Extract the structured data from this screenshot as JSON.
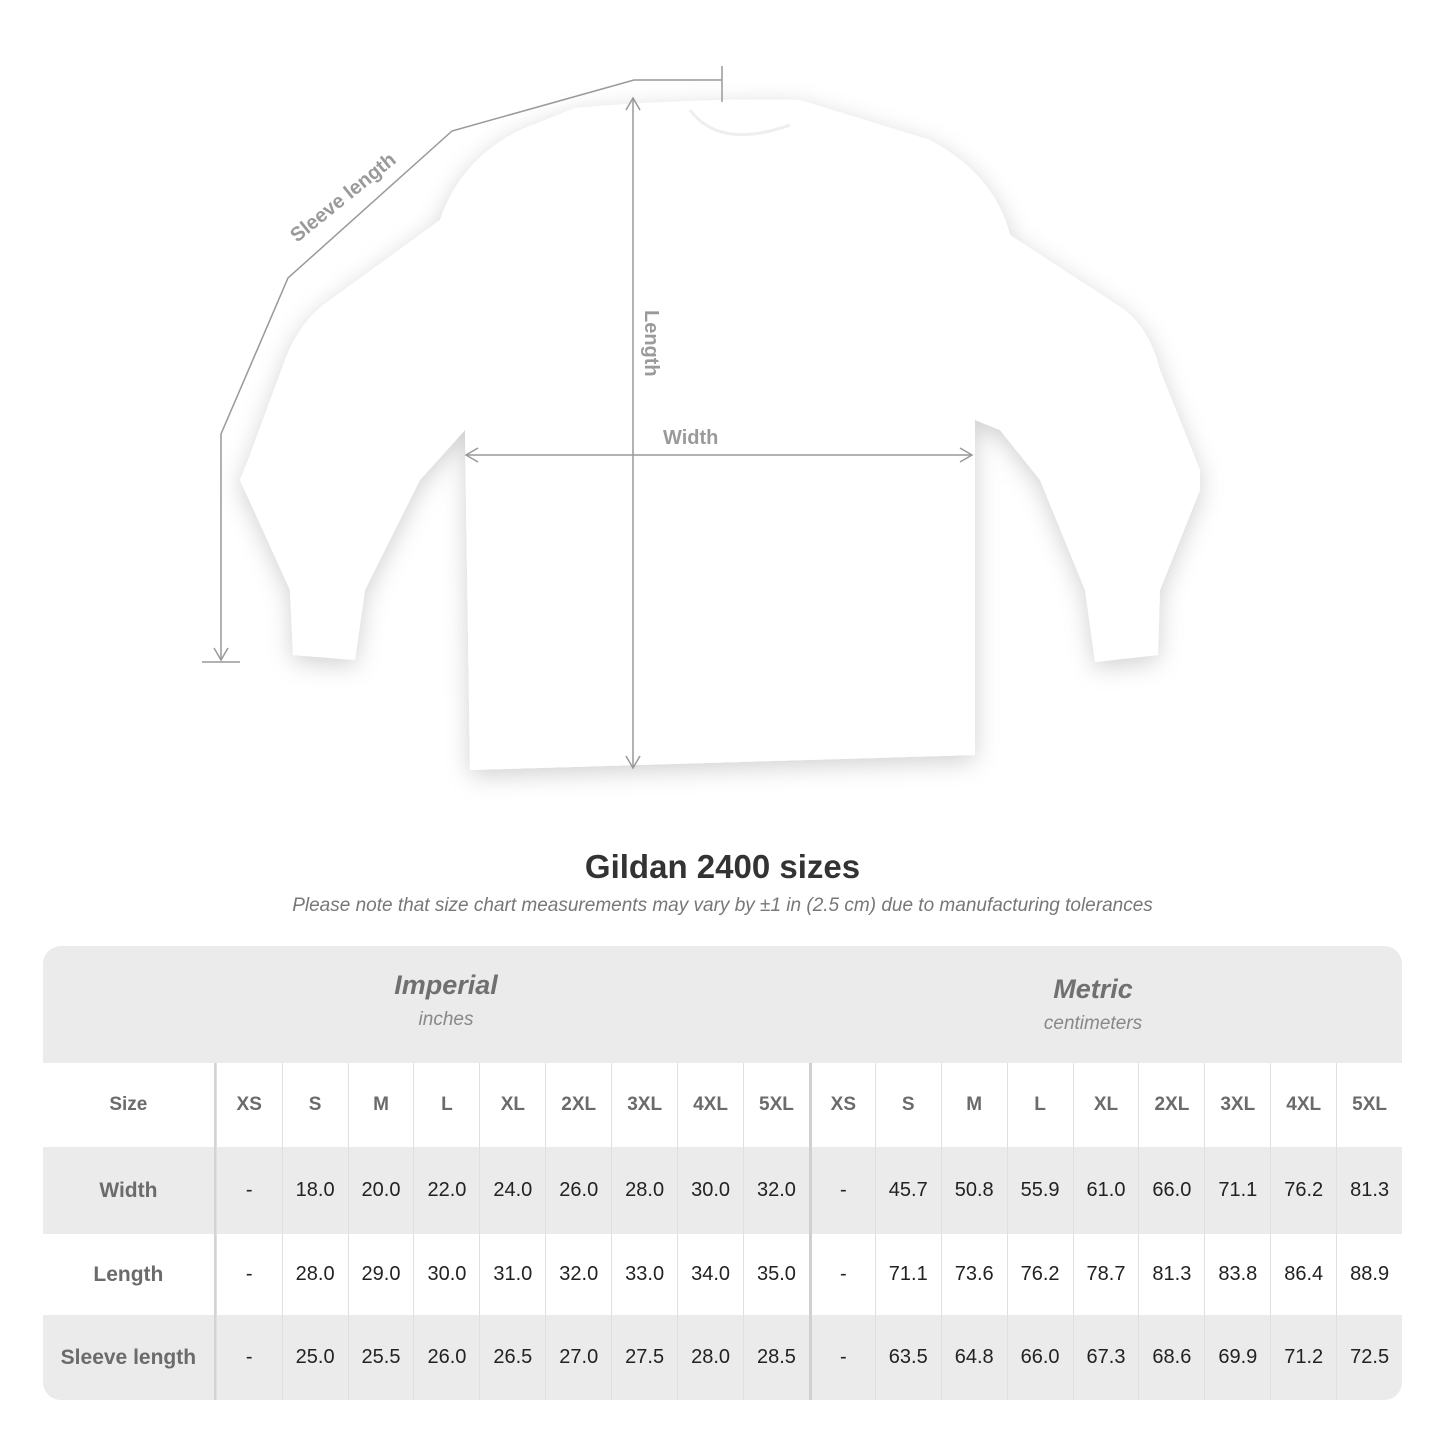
{
  "diagram": {
    "labels": {
      "sleeve": "Sleeve length",
      "length": "Length",
      "width": "Width"
    },
    "colors": {
      "shirt": "#ffffff",
      "measure_line": "#999999"
    }
  },
  "title": "Gildan 2400 sizes",
  "note": "Please note that size chart measurements may vary by ±1 in (2.5 cm) due to manufacturing tolerances",
  "table": {
    "imperial": {
      "name": "Imperial",
      "unit": "inches"
    },
    "metric": {
      "name": "Metric",
      "unit": "centimeters"
    },
    "size_label": "Size",
    "sizes": [
      "XS",
      "S",
      "M",
      "L",
      "XL",
      "2XL",
      "3XL",
      "4XL",
      "5XL"
    ],
    "rows": [
      {
        "label": "Width",
        "imperial": [
          "-",
          "18.0",
          "20.0",
          "22.0",
          "24.0",
          "26.0",
          "28.0",
          "30.0",
          "32.0"
        ],
        "metric": [
          "-",
          "45.7",
          "50.8",
          "55.9",
          "61.0",
          "66.0",
          "71.1",
          "76.2",
          "81.3"
        ]
      },
      {
        "label": "Length",
        "imperial": [
          "-",
          "28.0",
          "29.0",
          "30.0",
          "31.0",
          "32.0",
          "33.0",
          "34.0",
          "35.0"
        ],
        "metric": [
          "-",
          "71.1",
          "73.6",
          "76.2",
          "78.7",
          "81.3",
          "83.8",
          "86.4",
          "88.9"
        ]
      },
      {
        "label": "Sleeve length",
        "imperial": [
          "-",
          "25.0",
          "25.5",
          "26.0",
          "26.5",
          "27.0",
          "27.5",
          "28.0",
          "28.5"
        ],
        "metric": [
          "-",
          "63.5",
          "64.8",
          "66.0",
          "67.3",
          "68.6",
          "69.9",
          "71.2",
          "72.5"
        ]
      }
    ]
  }
}
